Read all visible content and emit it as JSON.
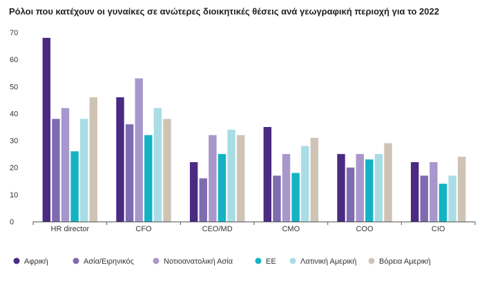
{
  "chart_data": {
    "type": "bar",
    "title": "Ρόλοι που κατέχουν οι γυναίκες σε ανώτερες διοικητικές θέσεις ανά γεωγραφική περιοχή για το 2022",
    "xlabel": "",
    "ylabel": "",
    "ylim": [
      0,
      70
    ],
    "yticks": [
      0,
      10,
      20,
      30,
      40,
      50,
      60,
      70
    ],
    "grid": false,
    "legend_position": "bottom",
    "categories": [
      "HR director",
      "CFO",
      "CEO/MD",
      "CMO",
      "COO",
      "CIO"
    ],
    "series": [
      {
        "name": "Αφρική",
        "color": "#4a2a82",
        "values": [
          68,
          46,
          22,
          35,
          25,
          22
        ]
      },
      {
        "name": "Ασία/Ειρηνικός",
        "color": "#7e6bb0",
        "values": [
          38,
          36,
          16,
          17,
          20,
          17
        ]
      },
      {
        "name": "Νοτιοανατολική Ασία",
        "color": "#a897cc",
        "values": [
          42,
          53,
          32,
          25,
          25,
          22
        ]
      },
      {
        "name": "ΕΕ",
        "color": "#13b3c4",
        "values": [
          26,
          32,
          25,
          18,
          23,
          14
        ]
      },
      {
        "name": "Λατινική Αμερική",
        "color": "#a8dde6",
        "values": [
          38,
          42,
          34,
          28,
          25,
          17
        ]
      },
      {
        "name": "Βόρεια Αμερική",
        "color": "#cfc3b6",
        "values": [
          46,
          38,
          32,
          31,
          29,
          24
        ]
      }
    ]
  }
}
